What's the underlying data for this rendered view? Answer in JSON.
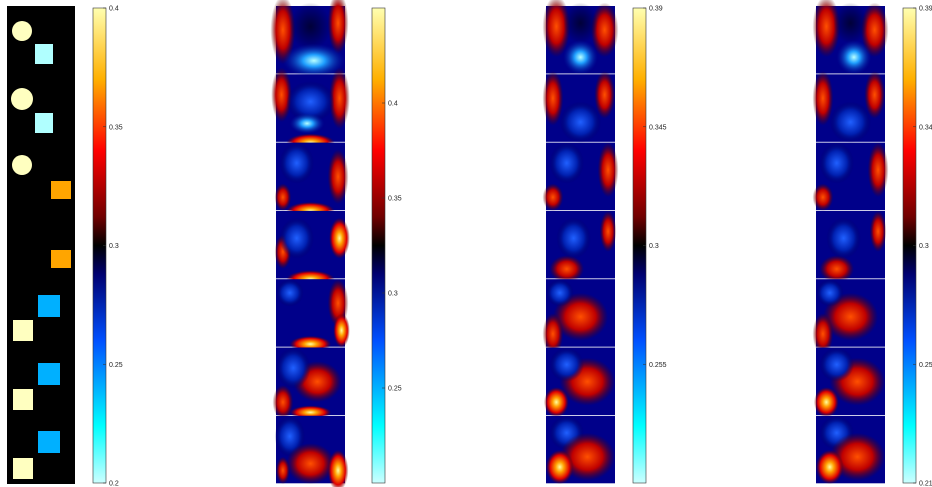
{
  "figure": {
    "panels": [
      {
        "kind": "ground-truth",
        "colorbar": {
          "cmap": "cold-hot",
          "range": [
            0.2,
            0.4
          ],
          "ticks": [
            "0.4",
            "0.35",
            "0.3",
            "0.25",
            "0.2"
          ],
          "tick_values": [
            0.4,
            0.35,
            0.3,
            0.25,
            0.2
          ]
        }
      },
      {
        "kind": "reconstruction",
        "colorbar": {
          "cmap": "cold-hot",
          "range": [
            0.2,
            0.45
          ],
          "ticks": [
            "0.4",
            "0.35",
            "0.3",
            "0.25"
          ],
          "tick_values": [
            0.4,
            0.35,
            0.3,
            0.25
          ]
        }
      },
      {
        "kind": "reconstruction",
        "colorbar": {
          "cmap": "cold-hot",
          "range": [
            0.21,
            0.39
          ],
          "ticks": [
            "0.39",
            "0.345",
            "0.3",
            "0.255"
          ],
          "tick_values": [
            0.39,
            0.345,
            0.3,
            0.255
          ]
        }
      },
      {
        "kind": "reconstruction",
        "colorbar": {
          "cmap": "cold-hot",
          "range": [
            0.21,
            0.39
          ],
          "ticks": [
            "0.39",
            "0.345",
            "0.3",
            "0.255",
            "0.21"
          ],
          "tick_values": [
            0.39,
            0.345,
            0.3,
            0.255,
            0.21
          ]
        }
      }
    ],
    "colors": {
      "background": "#000000",
      "inclusion_pale_yellow": "#ffffc0",
      "inclusion_pale_cyan": "#b0ffff",
      "inclusion_orange": "#ffa500",
      "inclusion_blue": "#00b0ff"
    }
  }
}
